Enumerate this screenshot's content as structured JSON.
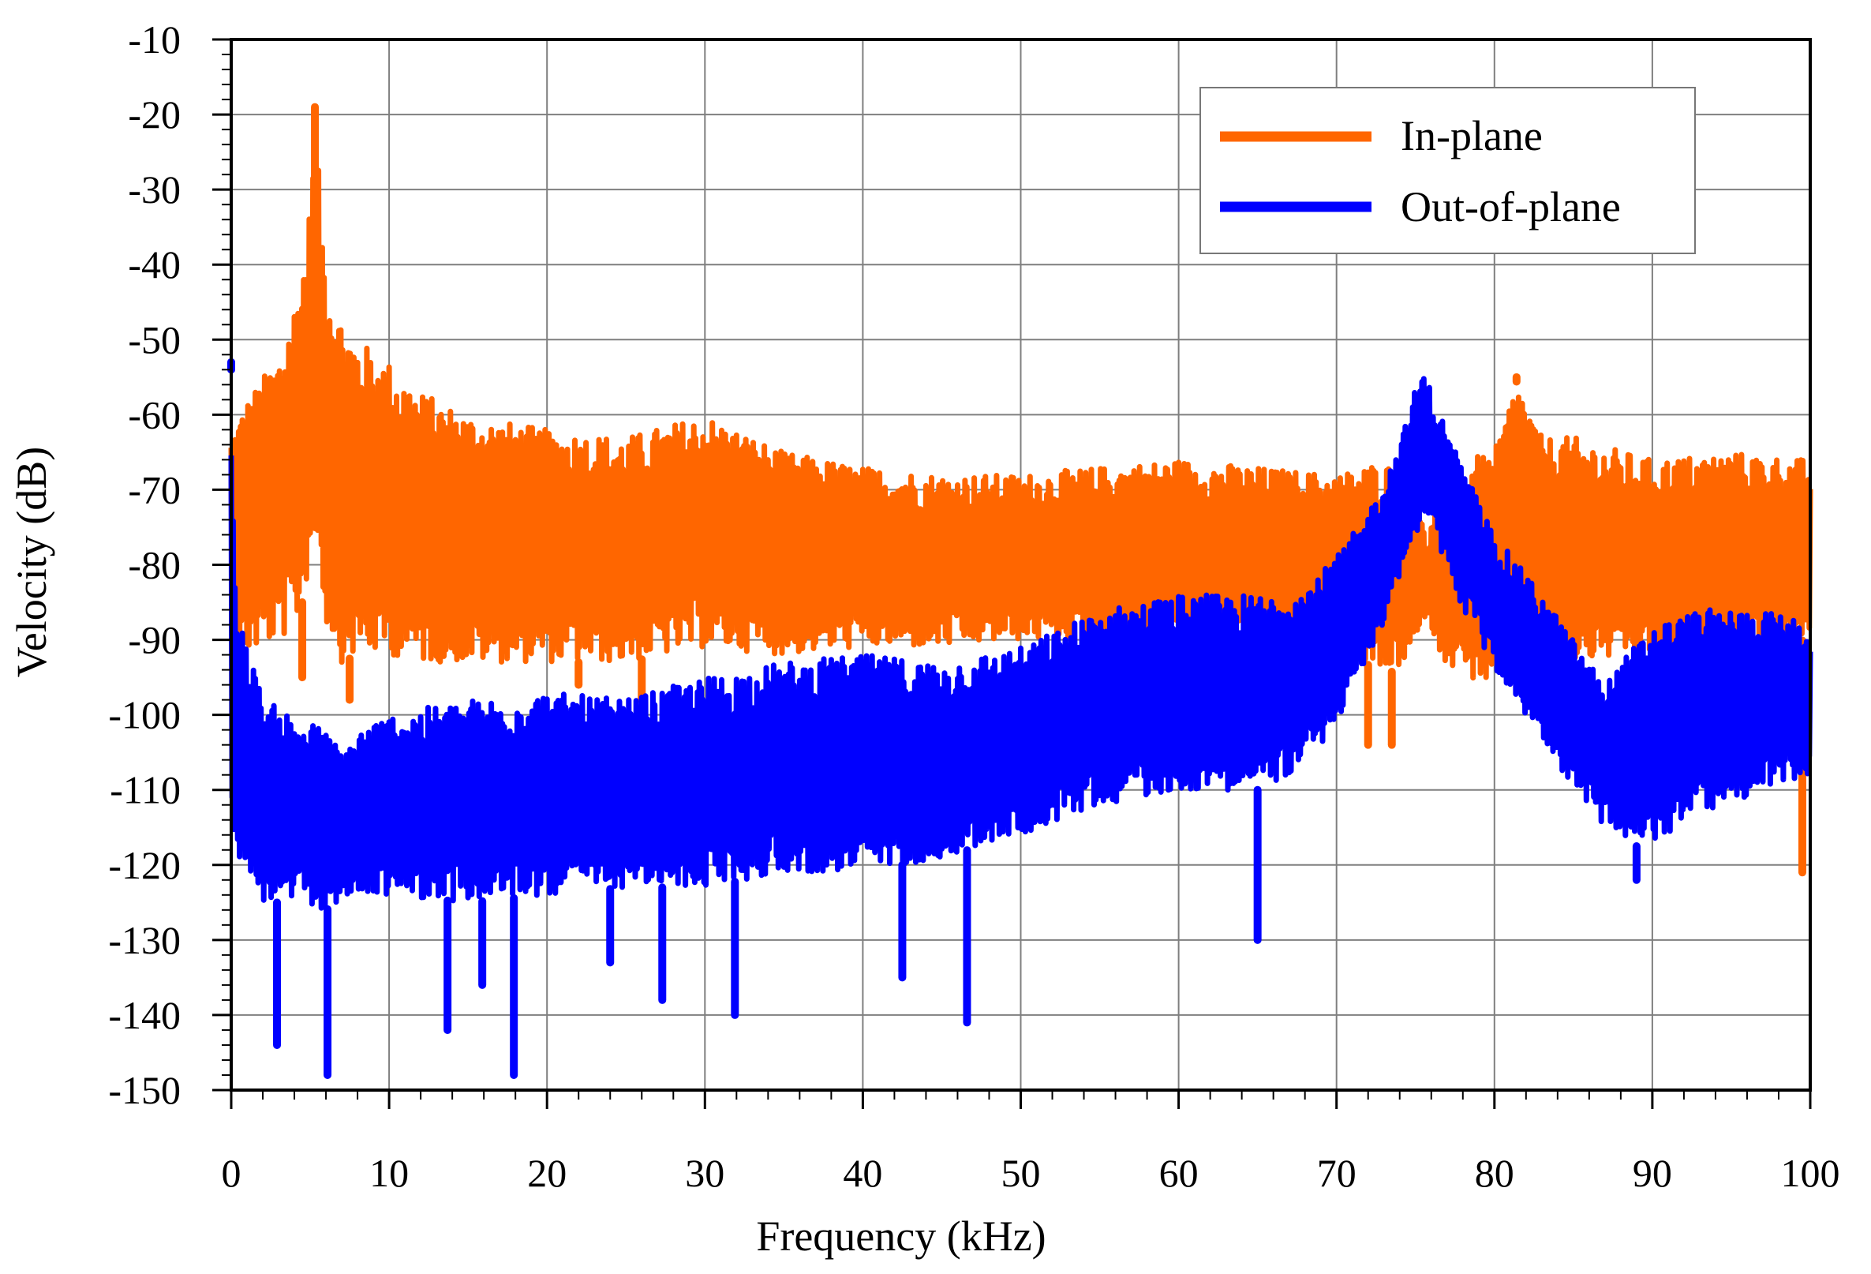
{
  "chart_data": {
    "type": "line",
    "title": "",
    "xlabel": "Frequency (kHz)",
    "ylabel": "Velocity (dB)",
    "xlim": [
      0,
      100
    ],
    "ylim": [
      -150,
      -10
    ],
    "xticks": [
      0,
      10,
      20,
      30,
      40,
      50,
      60,
      70,
      80,
      90,
      100
    ],
    "yticks": [
      -10,
      -20,
      -30,
      -40,
      -50,
      -60,
      -70,
      -80,
      -90,
      -100,
      -110,
      -120,
      -130,
      -140,
      -150
    ],
    "xtick_labels": [
      "0",
      "10",
      "20",
      "30",
      "40",
      "50",
      "60",
      "70",
      "80",
      "90",
      "100"
    ],
    "ytick_labels": [
      "-10",
      "-20",
      "-30",
      "-40",
      "-50",
      "-60",
      "-70",
      "-80",
      "-90",
      "-100",
      "-110",
      "-120",
      "-130",
      "-140",
      "-150"
    ],
    "grid": true,
    "legend_position": "top-right",
    "series": [
      {
        "name": "In-plane",
        "color": "#ff6600",
        "envelope_x": [
          0,
          1,
          3,
          4,
          4.5,
          5,
          5.3,
          5.6,
          6,
          7,
          8,
          10,
          12,
          15,
          20,
          25,
          30,
          35,
          40,
          45,
          50,
          55,
          60,
          65,
          70,
          73,
          75,
          75.7,
          76.5,
          78,
          80,
          81,
          81.5,
          82,
          83,
          85,
          90,
          95,
          100
        ],
        "upper": [
          -62,
          -58,
          -52,
          -45,
          -40,
          -32,
          -19,
          -30,
          -40,
          -47,
          -50,
          -53,
          -57,
          -60,
          -62,
          -63,
          -60,
          -65,
          -67,
          -68,
          -68,
          -67,
          -66,
          -67,
          -68,
          -66,
          -70,
          -77,
          -70,
          -66,
          -65,
          -58,
          -55,
          -58,
          -63,
          -63,
          -66,
          -65,
          -66
        ],
        "lower": [
          -93,
          -92,
          -90,
          -89,
          -85,
          -80,
          -75,
          -80,
          -88,
          -93,
          -92,
          -92,
          -93,
          -93,
          -93,
          -93,
          -91,
          -92,
          -91,
          -91,
          -90,
          -90,
          -90,
          -90,
          -90,
          -95,
          -92,
          -86,
          -92,
          -95,
          -96,
          -92,
          -92,
          -93,
          -94,
          -93,
          -92,
          -91,
          -90
        ],
        "spikes": [
          [
            5.3,
            -19
          ],
          [
            7.5,
            -98
          ],
          [
            4.5,
            -95
          ],
          [
            22,
            -96
          ],
          [
            26,
            -98
          ],
          [
            72,
            -104
          ],
          [
            73.5,
            -104
          ],
          [
            81.4,
            -55
          ],
          [
            99.5,
            -121
          ],
          [
            91,
            -105
          ],
          [
            96,
            -105
          ]
        ]
      },
      {
        "name": "Out-of-plane",
        "color": "#0000ff",
        "envelope_x": [
          0,
          0.3,
          1,
          2,
          4,
          6,
          7,
          8,
          10,
          15,
          20,
          25,
          30,
          35,
          40,
          45,
          50,
          55,
          60,
          65,
          68,
          70,
          72,
          74,
          75.2,
          75.6,
          76,
          78,
          80,
          83,
          85,
          87,
          88,
          90,
          93,
          95,
          97,
          100
        ],
        "upper": [
          -54,
          -87,
          -90,
          -98,
          -100,
          -102,
          -105,
          -102,
          -100,
          -98,
          -97,
          -98,
          -95,
          -93,
          -92,
          -93,
          -91,
          -86,
          -84,
          -84,
          -83,
          -79,
          -73,
          -64,
          -55,
          -54,
          -57,
          -67,
          -76,
          -84,
          -90,
          -96,
          -93,
          -88,
          -86,
          -86,
          -86,
          -88
        ],
        "lower": [
          -112,
          -118,
          -122,
          -125,
          -125,
          -126,
          -125,
          -124,
          -124,
          -125,
          -124,
          -123,
          -123,
          -121,
          -121,
          -119,
          -116,
          -112,
          -110,
          -110,
          -107,
          -101,
          -93,
          -82,
          -75,
          -73,
          -75,
          -86,
          -94,
          -103,
          -110,
          -115,
          -118,
          -117,
          -113,
          -112,
          -110,
          -108
        ],
        "spikes": [
          [
            0,
            -53
          ],
          [
            2.9,
            -144
          ],
          [
            6.1,
            -148
          ],
          [
            13.7,
            -142
          ],
          [
            15.9,
            -136
          ],
          [
            17.9,
            -148
          ],
          [
            27.3,
            -138
          ],
          [
            31.9,
            -140
          ],
          [
            46.6,
            -141
          ],
          [
            65,
            -130
          ],
          [
            89,
            -122
          ],
          [
            42.5,
            -135
          ],
          [
            24,
            -133
          ]
        ]
      }
    ]
  }
}
